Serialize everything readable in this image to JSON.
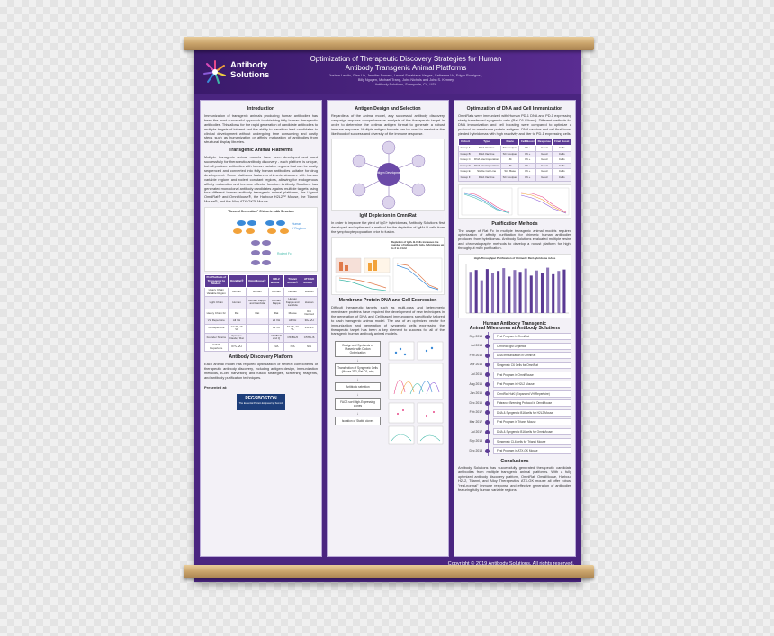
{
  "header": {
    "brand_line1": "Antibody",
    "brand_line2": "Solutions",
    "title_line1": "Optimization of Therapeutic Discovery Strategies for Human",
    "title_line2": "Antibody Transgenic Animal Platforms",
    "authors_line1": "Joshua Lewitz, Gian Lin, Jennifer Somers, Leonel Sarabiana-Vargas, Catherine Vo, Edgar Rodriguez,",
    "authors_line2": "Billy Nguyen, Michael Trang, John Nichols and John S. Kenney",
    "affiliation": "Antibody Solutions, Sunnyvale, CA, USA"
  },
  "col1": {
    "intro_title": "Introduction",
    "intro_text": "Immunization of transgenic animals producing human antibodies has been the most successful approach to obtaining fully human therapeutic antibodies. This allows for the rapid generation of candidate antibodies to multiple targets of interest and the ability to transition lead candidates to clinical development without undergoing time consuming and costly steps such as humanization or affinity maturation of antibodies from structural display libraries.",
    "platform_title": "Transgenic Animal Platforms",
    "platform_text": "Multiple transgenic animal models have been developed and used successfully for therapeutic antibody discovery - each platform is unique, but all produce antibodies with human variable regions that can be easily sequenced and converted into fully human antibodies suitable for drug development. Some platforms feature a chimeric structure with human variable regions and rodent constant regions, allowing for endogenous affinity maturation and immune effector function. Antibody Solutions has generated monoclonal antibody candidates against multiple targets using four different human antibody transgenic animal platforms, the Ligand OmniRat® and OmniMouse®, the Harbour H2L2™ Mouse, the Trianni Mouse®, and the Alloy ATX-GK™ Mouse.",
    "fig_caption": "\"Second Generation\" Chimeric mAb Structure",
    "fig_label_human": "Human",
    "fig_label_vregions": "V Regions",
    "fig_label_fc": "Rodent Fc",
    "table_headers": [
      "Pro Platform of Transgenic Ig Models",
      "OmniRat®",
      "OmniMouse®",
      "H2L2 Mouse™",
      "Trianni Mouse®",
      "ATX-GK Mouse™"
    ],
    "table_rows": [
      [
        "Heavy Chain Variable Region",
        "Human",
        "Human",
        "Human",
        "Human",
        "Human"
      ],
      [
        "Light Chain",
        "Human",
        "Human Kappa and Lambda",
        "Human Kappa",
        "Human Kappa and Lambda",
        "Human"
      ],
      [
        "Heavy Chain Fc",
        "Rat",
        "Rat",
        "Rat",
        "Mouse",
        "Rat Derived"
      ],
      [
        "VH Repertoire",
        "All VH",
        "",
        "22 VH",
        "All VH",
        "30+ VH"
      ],
      [
        "VL Repertoire",
        "12 VK, 16 VL",
        "",
        "12 VK",
        "All VK, All VL",
        "35+ VK"
      ],
      [
        "Founder Strains",
        "Sprague Dawley Rat",
        "",
        "C57BL/6 and Q",
        "C57BL/6",
        "C57BL/6"
      ],
      [
        "HAMA Repertoire",
        "IFT+ VH",
        "",
        "N/A",
        "N/A",
        "N/A"
      ]
    ],
    "discovery_title": "Antibody Discovery Platform",
    "discovery_text": "Each animal model has required optimization of several components of therapeutic antibody discovery, including antigen design, immunization methods, B-cell harvesting and fusion strategies, screening reagents, and antibody purification techniques.",
    "presented_at": "Presented at:",
    "pegs_line1": "PEGSBOSTON",
    "pegs_line2": "The Essential Protein Engineering Summit"
  },
  "col2": {
    "antigen_title": "Antigen Design and Selection",
    "antigen_text": "Regardless of the animal model, any successful antibody discovery campaign requires comprehensive analysis of the therapeutic target in order to determine the optimal antigen format to generate a robust immune response. Multiple antigen formats can be used to maximize the likelihood of success and diversity of the immune response.",
    "antigen_center": "Antigen Development",
    "igm_title": "IgM Depletion in OmniRat",
    "igm_text": "In order to improve the yield of IgG+ hybridomas, Antibody Solutions first developed and optimized a method for the depletion of IgM+ B-cells from the lymphocyte population prior to fusion.",
    "igm_fig_caption": "Depletion of IgM+ B-Cells increases the number of IgG specific IgG+ hybridomas up to 3 to 4 fold",
    "membrane_title": "Membrane Protein DNA and Cell Expression",
    "membrane_text": "Difficult therapeutic targets such as multi-pass and heteromeric membrane proteins have required the development of new techniques in the generation of DNA and Cell-based immunogens specifically tailored to each transgenic animal model. The use of an optimized vector for immunization and generation of syngeneic cells expressing the therapeutic target has been a key element to success for all of the transgenic human antibody animal models.",
    "flow_steps": [
      "Design and Synthesis of Plasmid with Codon Optimization",
      "Transfection of Syngeneic Cells (Mouse 3T3, Rat C6, etc)",
      "Antibiotic selection",
      "FACS sort High-Expressing clones",
      "Isolation of Stable clones"
    ]
  },
  "col3": {
    "dna_title": "Optimization of DNA and Cell Immunization",
    "dna_text": "OmniRats were immunized with Human PD-1 DNA and PD-1 expressing stably transfected syngeneic cells (Rat C6 Glioma). Different methods for DNA immunization and cell boosting were compared to optimize a protocol for membrane protein antigens. DNA vaccine and cell final boost yielded hybridomas with high reactivity and titer to PD-1 expressing cells.",
    "dna_table_headers": [
      "Cohort",
      "Type",
      "Route",
      "Cell Boost",
      "Response",
      "Final Boost"
    ],
    "dna_table_rows": [
      [
        "Group A",
        "DNA Vaccine",
        "SC Footpad",
        "C6 +",
        "Good",
        "Cells"
      ],
      [
        "Group B",
        "DNA Vaccine",
        "SC Footpad",
        "C6 +",
        "Good",
        "Cells"
      ],
      [
        "Group C",
        "DNA Electroporation",
        "I.M.",
        "C6 +",
        "Good",
        "Cells"
      ],
      [
        "Group D",
        "DNA Electroporation",
        "I.M.",
        "C6 +",
        "Good",
        "Cells"
      ],
      [
        "Group E",
        "Stable Cell Line",
        "SC, Base",
        "C6 +",
        "Good",
        "Cells"
      ],
      [
        "Group F",
        "DNA Vaccine",
        "SC Footpad",
        "C6 +",
        "Good",
        "Cells"
      ]
    ],
    "purif_title": "Purification Methods",
    "purif_text": "The usage of Rat Fc in multiple transgenic animal models required optimization of affinity purification for chimeric human antibodies produced from hybridomas. Antibody Solutions evaluated multiple resins and chromatography methods to develop a robust platform for high-throughput mAb purification.",
    "purif_chart_title": "High-Throughput Purification of Chimeric Rat Hybridoma mAbs",
    "milestones_title_line1": "Human Antibody Transgenic",
    "milestones_title_line2": "Animal Milestones at Antibody Solutions",
    "milestones": [
      {
        "date": "Sep 2013",
        "text": "First Program in OmniRat"
      },
      {
        "date": "Jul 2014",
        "text": "OmniRat IgM Depletion"
      },
      {
        "date": "Feb 2016",
        "text": "DNA Immunization in OmniRat"
      },
      {
        "date": "Apr 2016",
        "text": "Syngeneic C6 Cells for OmniRat"
      },
      {
        "date": "Jul 2016",
        "text": "First Program in OmniMouse"
      },
      {
        "date": "Aug 2016",
        "text": "First Program in H2L2 Mouse"
      },
      {
        "date": "Jan 2016",
        "text": "OmniRat HuKl (Expanded VH Repertoire)"
      },
      {
        "date": "Dec 2016",
        "text": "Fabrance Breeding Protocol in OmniMouse"
      },
      {
        "date": "Feb 2017",
        "text": "DNA & Syngeneic B16 cells for H2L2 Mouse"
      },
      {
        "date": "Mar 2017",
        "text": "First Program in Trianni Mouse"
      },
      {
        "date": "Jul 2017",
        "text": "DNA & Syngeneic B16 cells for OmniMouse"
      },
      {
        "date": "Sep 2018",
        "text": "Syngeneic CL6 cells for Trianni Mouse"
      },
      {
        "date": "Dec 2018",
        "text": "First Program in ATX-GK Mouse"
      }
    ],
    "concl_title": "Conclusions",
    "concl_text": "Antibody Solutions has successfully generated therapeutic candidate antibodies from multiple transgenic animal platforms. With a fully optimized antibody discovery platform, OmniRat, OmniMouse, Harbour H2L2, Trianni, and Alloy Therapeutics ATX-GK mouse all offer robust \"real-normal\" immune response and effective generation of antibodies featuring fully human variable regions."
  },
  "footer": {
    "copyright": "Copyright © 2019 Antibody Solutions. All rights reserved."
  },
  "colors": {
    "poster_purple": "#4a2580",
    "accent_purple": "#5b3a94",
    "rod_wood": "#c9a36a"
  },
  "chart_data": {
    "type": "bar",
    "title": "High-Throughput Purification of Chimeric Rat Hybridoma mAbs",
    "categories": [
      "1",
      "2",
      "3",
      "4",
      "5",
      "6",
      "7",
      "8",
      "9",
      "10",
      "11",
      "12",
      "13",
      "14",
      "15",
      "16",
      "17",
      "18"
    ],
    "values": [
      88,
      92,
      70,
      94,
      85,
      90,
      96,
      78,
      92,
      88,
      95,
      80,
      91,
      86,
      97,
      83,
      90,
      93
    ],
    "ylim": [
      0,
      100
    ]
  }
}
